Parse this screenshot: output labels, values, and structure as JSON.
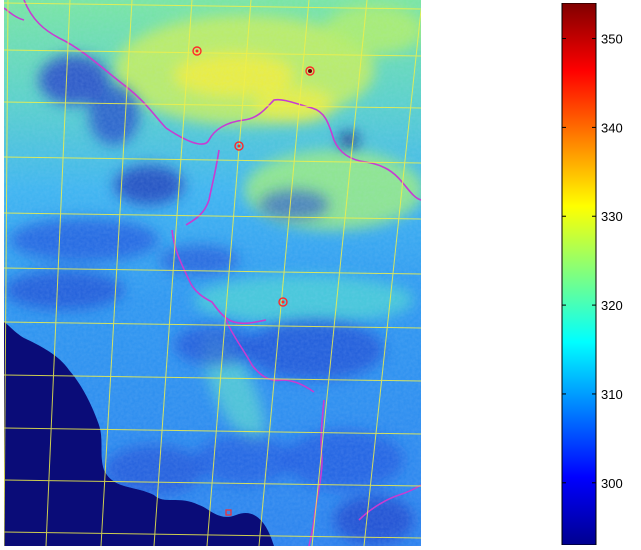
{
  "colorbar": {
    "min": 293,
    "max": 354,
    "ticks": [
      300,
      310,
      320,
      330,
      340,
      350
    ],
    "tick_labels": [
      "300",
      "310",
      "320",
      "330",
      "340",
      "350"
    ],
    "colormap": "jet"
  },
  "map": {
    "ocean_color": "#0a0c78",
    "grid_color": "#f0f04a",
    "border_color": "#c83cd2",
    "station_marker_color": "#ff2a2a",
    "station_count": 5
  }
}
